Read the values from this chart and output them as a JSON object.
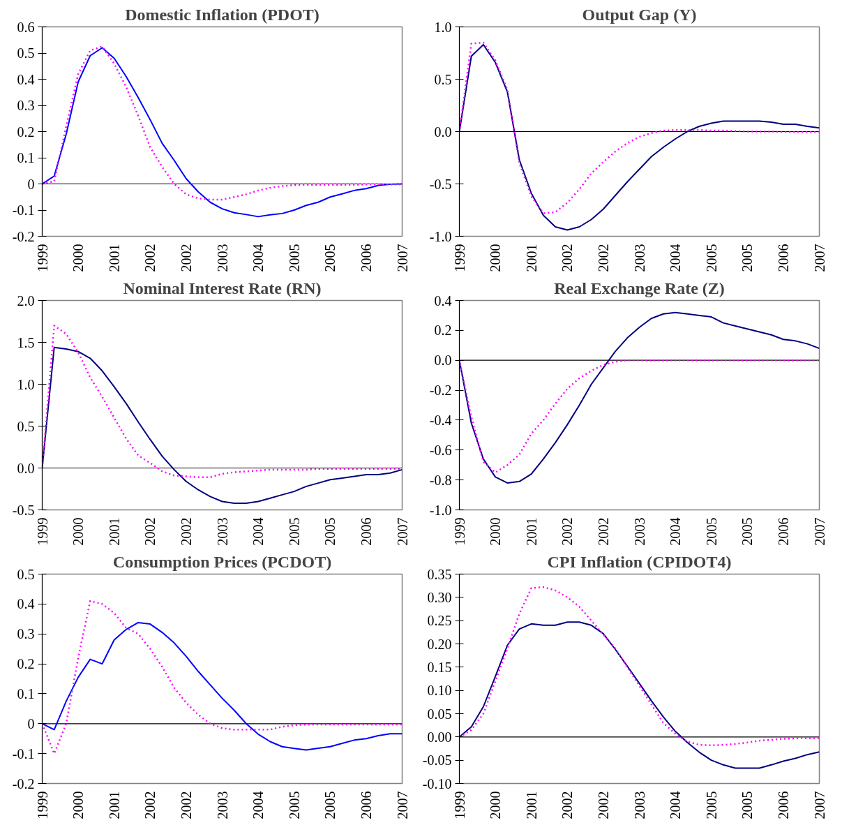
{
  "chart_data": [
    {
      "type": "line",
      "title": "Domestic Inflation (PDOT)",
      "categories": [
        "1999",
        null,
        null,
        "2000",
        null,
        null,
        "2001",
        null,
        null,
        "2002",
        null,
        null,
        "2002",
        null,
        null,
        "2003",
        null,
        null,
        "2004",
        null,
        null,
        "2005",
        null,
        null,
        "2005",
        null,
        null,
        "2006",
        null,
        null,
        "2007"
      ],
      "series": [
        {
          "color": "#0000ff",
          "line_style": "solid",
          "values": [
            0,
            0.03,
            0.19,
            0.39,
            0.49,
            0.52,
            0.48,
            0.41,
            0.33,
            0.245,
            0.155,
            0.09,
            0.02,
            -0.03,
            -0.07,
            -0.095,
            -0.11,
            -0.117,
            -0.125,
            -0.118,
            -0.113,
            -0.1,
            -0.082,
            -0.07,
            -0.05,
            -0.038,
            -0.025,
            -0.018,
            -0.006,
            -0.001,
            0
          ]
        },
        {
          "color": "#ff00ff",
          "line_style": "dotted",
          "values": [
            0,
            0.01,
            0.22,
            0.42,
            0.51,
            0.525,
            0.46,
            0.37,
            0.26,
            0.14,
            0.065,
            0.0,
            -0.04,
            -0.055,
            -0.06,
            -0.06,
            -0.05,
            -0.04,
            -0.025,
            -0.015,
            -0.008,
            -0.005,
            -0.003,
            -0.003,
            -0.003,
            -0.003,
            -0.003,
            -0.002,
            -0.002,
            -0.002,
            -0.002
          ]
        }
      ],
      "ylim": [
        -0.2,
        0.6
      ],
      "yticks": [
        -0.2,
        -0.1,
        0,
        0.1,
        0.2,
        0.3,
        0.4,
        0.5,
        0.6
      ],
      "ref_lines": [
        {
          "axis": "y",
          "value": 0,
          "color": "#000000"
        }
      ]
    },
    {
      "type": "line",
      "title": "Output Gap (Y)",
      "categories": [
        "1999",
        null,
        null,
        "2000",
        null,
        null,
        "2001",
        null,
        null,
        "2002",
        null,
        null,
        "2002",
        null,
        null,
        "2003",
        null,
        null,
        "2004",
        null,
        null,
        "2005",
        null,
        null,
        "2005",
        null,
        null,
        "2006",
        null,
        null,
        "2007"
      ],
      "series": [
        {
          "color": "#000080",
          "line_style": "solid",
          "values": [
            0,
            0.72,
            0.83,
            0.66,
            0.38,
            -0.27,
            -0.59,
            -0.8,
            -0.91,
            -0.94,
            -0.91,
            -0.84,
            -0.74,
            -0.61,
            -0.48,
            -0.36,
            -0.24,
            -0.15,
            -0.07,
            0.0,
            0.05,
            0.08,
            0.1,
            0.1,
            0.1,
            0.1,
            0.09,
            0.07,
            0.07,
            0.05,
            0.035
          ]
        },
        {
          "color": "#ff00ff",
          "line_style": "dotted",
          "values": [
            0,
            0.84,
            0.85,
            0.68,
            0.4,
            -0.3,
            -0.62,
            -0.78,
            -0.77,
            -0.68,
            -0.55,
            -0.4,
            -0.29,
            -0.19,
            -0.11,
            -0.05,
            -0.015,
            0.01,
            0.015,
            0.015,
            0.015,
            0.01,
            0.01,
            0.005,
            0.0,
            0.0,
            0.0,
            -0.003,
            -0.003,
            -0.003,
            -0.003
          ]
        }
      ],
      "ylim": [
        -1.0,
        1.0
      ],
      "yticks": [
        {
          "value": -1.0,
          "label": "-1.0"
        },
        -0.5,
        {
          "value": 0,
          "label": "0.0"
        },
        0.5,
        {
          "value": 1.0,
          "label": "1.0"
        }
      ],
      "ref_lines": [
        {
          "axis": "y",
          "value": 0,
          "color": "#000000"
        }
      ]
    },
    {
      "type": "line",
      "title": "Nominal Interest Rate (RN)",
      "categories": [
        "1999",
        null,
        null,
        "2000",
        null,
        null,
        "2001",
        null,
        null,
        "2002",
        null,
        null,
        "2002",
        null,
        null,
        "2003",
        null,
        null,
        "2004",
        null,
        null,
        "2005",
        null,
        null,
        "2005",
        null,
        null,
        "2006",
        null,
        null,
        "2007"
      ],
      "series": [
        {
          "color": "#000080",
          "line_style": "solid",
          "values": [
            0,
            1.44,
            1.42,
            1.39,
            1.31,
            1.16,
            0.97,
            0.77,
            0.55,
            0.34,
            0.14,
            -0.02,
            -0.16,
            -0.26,
            -0.34,
            -0.4,
            -0.42,
            -0.42,
            -0.4,
            -0.36,
            -0.32,
            -0.28,
            -0.22,
            -0.18,
            -0.14,
            -0.12,
            -0.1,
            -0.08,
            -0.08,
            -0.06,
            -0.02
          ]
        },
        {
          "color": "#ff00ff",
          "line_style": "dotted",
          "values": [
            0,
            1.7,
            1.6,
            1.38,
            1.08,
            0.85,
            0.6,
            0.35,
            0.15,
            0.06,
            -0.04,
            -0.09,
            -0.1,
            -0.11,
            -0.11,
            -0.07,
            -0.05,
            -0.04,
            -0.03,
            -0.02,
            -0.02,
            -0.02,
            -0.02,
            -0.01,
            -0.01,
            -0.01,
            -0.01,
            -0.01,
            -0.01,
            -0.01,
            -0.01
          ]
        }
      ],
      "ylim": [
        -0.5,
        2.0
      ],
      "yticks": [
        -0.5,
        {
          "value": 0,
          "label": "0.0"
        },
        0.5,
        {
          "value": 1.0,
          "label": "1.0"
        },
        1.5,
        {
          "value": 2.0,
          "label": "2.0"
        }
      ],
      "ref_lines": [
        {
          "axis": "y",
          "value": 0,
          "color": "#000000"
        }
      ]
    },
    {
      "type": "line",
      "title": "Real Exchange Rate (Z)",
      "categories": [
        "1999",
        null,
        null,
        "2000",
        null,
        null,
        "2001",
        null,
        null,
        "2002",
        null,
        null,
        "2002",
        null,
        null,
        "2003",
        null,
        null,
        "2004",
        null,
        null,
        "2005",
        null,
        null,
        "2005",
        null,
        null,
        "2006",
        null,
        null,
        "2007"
      ],
      "series": [
        {
          "color": "#000080",
          "line_style": "solid",
          "values": [
            0,
            -0.42,
            -0.66,
            -0.78,
            -0.82,
            -0.81,
            -0.76,
            -0.66,
            -0.55,
            -0.43,
            -0.3,
            -0.16,
            -0.05,
            0.06,
            0.15,
            0.22,
            0.28,
            0.31,
            0.32,
            0.31,
            0.3,
            0.29,
            0.25,
            0.23,
            0.21,
            0.19,
            0.17,
            0.14,
            0.13,
            0.11,
            0.08
          ]
        },
        {
          "color": "#ff00ff",
          "line_style": "dotted",
          "values": [
            0,
            -0.38,
            -0.68,
            -0.75,
            -0.7,
            -0.63,
            -0.49,
            -0.4,
            -0.29,
            -0.19,
            -0.12,
            -0.07,
            -0.03,
            -0.01,
            0,
            0,
            0,
            0,
            0,
            0,
            0,
            0,
            0,
            0,
            0,
            0,
            0,
            0,
            0,
            0,
            0
          ]
        }
      ],
      "ylim": [
        -1.0,
        0.4
      ],
      "yticks": [
        {
          "value": -1.0,
          "label": "-1.0"
        },
        -0.8,
        -0.6,
        -0.4,
        -0.2,
        {
          "value": 0,
          "label": "0.0"
        },
        0.2,
        0.4
      ],
      "ref_lines": [
        {
          "axis": "y",
          "value": 0,
          "color": "#000000"
        }
      ]
    },
    {
      "type": "line",
      "title": "Consumption Prices (PCDOT)",
      "categories": [
        "1999",
        null,
        null,
        "2000",
        null,
        null,
        "2001",
        null,
        null,
        "2002",
        null,
        null,
        "2002",
        null,
        null,
        "2003",
        null,
        null,
        "2004",
        null,
        null,
        "2005",
        null,
        null,
        "2005",
        null,
        null,
        "2006",
        null,
        null,
        "2007"
      ],
      "series": [
        {
          "color": "#0000ff",
          "line_style": "solid",
          "values": [
            0,
            -0.02,
            0.075,
            0.155,
            0.215,
            0.2,
            0.28,
            0.315,
            0.338,
            0.333,
            0.305,
            0.27,
            0.225,
            0.175,
            0.13,
            0.085,
            0.045,
            0.0,
            -0.035,
            -0.06,
            -0.077,
            -0.083,
            -0.088,
            -0.082,
            -0.077,
            -0.066,
            -0.055,
            -0.05,
            -0.04,
            -0.034,
            -0.034
          ]
        },
        {
          "color": "#ff00ff",
          "line_style": "dotted",
          "values": [
            0,
            -0.1,
            0.0,
            0.22,
            0.41,
            0.4,
            0.37,
            0.32,
            0.3,
            0.25,
            0.19,
            0.12,
            0.07,
            0.03,
            0.0,
            -0.015,
            -0.02,
            -0.02,
            -0.02,
            -0.02,
            -0.01,
            -0.005,
            -0.003,
            -0.003,
            -0.003,
            -0.003,
            -0.003,
            -0.003,
            -0.003,
            -0.003,
            -0.003
          ]
        }
      ],
      "ylim": [
        -0.2,
        0.5
      ],
      "yticks": [
        -0.2,
        -0.1,
        0,
        0.1,
        0.2,
        0.3,
        0.4,
        0.5
      ],
      "ref_lines": [
        {
          "axis": "y",
          "value": 0,
          "color": "#000000"
        }
      ]
    },
    {
      "type": "line",
      "title": "CPI Inflation (CPIDOT4)",
      "categories": [
        "1999",
        null,
        null,
        "2000",
        null,
        null,
        "2001",
        null,
        null,
        "2002",
        null,
        null,
        "2002",
        null,
        null,
        "2003",
        null,
        null,
        "2004",
        null,
        null,
        "2005",
        null,
        null,
        "2005",
        null,
        null,
        "2006",
        null,
        null,
        "2007"
      ],
      "series": [
        {
          "color": "#000080",
          "line_style": "solid",
          "values": [
            0,
            0.022,
            0.065,
            0.13,
            0.197,
            0.232,
            0.243,
            0.24,
            0.24,
            0.247,
            0.247,
            0.24,
            0.222,
            0.188,
            0.152,
            0.115,
            0.078,
            0.043,
            0.012,
            -0.012,
            -0.033,
            -0.05,
            -0.06,
            -0.067,
            -0.067,
            -0.067,
            -0.06,
            -0.052,
            -0.046,
            -0.038,
            -0.032
          ]
        },
        {
          "color": "#ff00ff",
          "line_style": "dotted",
          "values": [
            0,
            0.015,
            0.05,
            0.12,
            0.19,
            0.265,
            0.32,
            0.322,
            0.315,
            0.3,
            0.28,
            0.25,
            0.22,
            0.19,
            0.15,
            0.11,
            0.07,
            0.03,
            0.007,
            -0.01,
            -0.017,
            -0.018,
            -0.017,
            -0.015,
            -0.012,
            -0.008,
            -0.006,
            -0.004,
            -0.003,
            -0.003,
            -0.003
          ]
        }
      ],
      "ylim": [
        -0.1,
        0.35
      ],
      "yticks": [
        {
          "value": -0.1,
          "label": "-0.10"
        },
        {
          "value": -0.05,
          "label": "-0.05"
        },
        {
          "value": 0,
          "label": "0.00"
        },
        {
          "value": 0.05,
          "label": "0.05"
        },
        {
          "value": 0.1,
          "label": "0.10"
        },
        {
          "value": 0.15,
          "label": "0.15"
        },
        {
          "value": 0.2,
          "label": "0.20"
        },
        {
          "value": 0.25,
          "label": "0.25"
        },
        {
          "value": 0.3,
          "label": "0.30"
        },
        {
          "value": 0.35,
          "label": "0.35"
        }
      ],
      "ref_lines": [
        {
          "axis": "y",
          "value": 0,
          "color": "#000000"
        }
      ]
    }
  ]
}
